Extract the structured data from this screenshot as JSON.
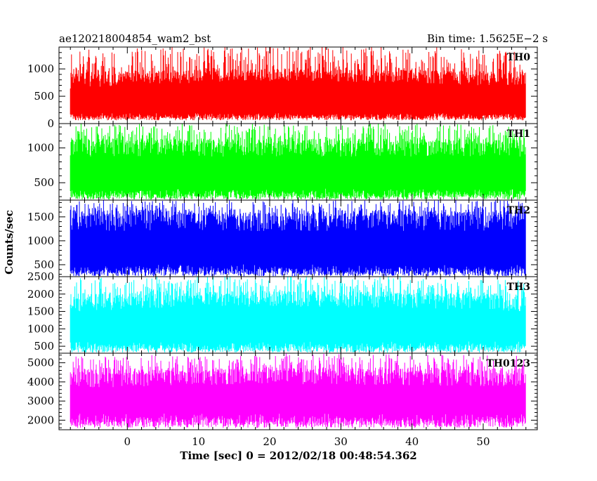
{
  "header": {
    "title": "ae120218004854_wam2_bst",
    "bin_time": "Bin time: 1.5625E−2 s"
  },
  "chart_data": {
    "type": "line",
    "xlabel": "Time [sec] 0 = 2012/02/18 00:48:54.362",
    "ylabel": "Counts/sec",
    "xlim": [
      -9.6,
      57.6
    ],
    "x_data_range": [
      -8.0,
      56.0
    ],
    "xticks": [
      0,
      10,
      20,
      30,
      40,
      50
    ],
    "series": [
      {
        "name": "TH0",
        "color": "#ff0000",
        "ylim": [
          0,
          1400
        ],
        "yticks": [
          0,
          500,
          1000
        ],
        "baseline": 620,
        "lo_range": [
          60,
          200
        ],
        "hi_range": [
          900,
          1400
        ],
        "trend": [
          [
            -8,
            560
          ],
          [
            0,
            600
          ],
          [
            10,
            630
          ],
          [
            20,
            650
          ],
          [
            30,
            640
          ],
          [
            40,
            620
          ],
          [
            50,
            600
          ],
          [
            56,
            590
          ]
        ]
      },
      {
        "name": "TH1",
        "color": "#00ff00",
        "ylim": [
          250,
          1350
        ],
        "yticks": [
          500,
          1000
        ],
        "baseline": 760,
        "lo_range": [
          260,
          420
        ],
        "hi_range": [
          1050,
          1350
        ],
        "trend": [
          [
            -8,
            760
          ],
          [
            56,
            760
          ]
        ]
      },
      {
        "name": "TH2",
        "color": "#0000ff",
        "ylim": [
          250,
          1850
        ],
        "yticks": [
          500,
          1000,
          1500
        ],
        "baseline": 1000,
        "lo_range": [
          260,
          520
        ],
        "hi_range": [
          1500,
          1850
        ],
        "trend": [
          [
            -8,
            1000
          ],
          [
            56,
            1000
          ]
        ]
      },
      {
        "name": "TH3",
        "color": "#00ffff",
        "ylim": [
          300,
          2500
        ],
        "yticks": [
          500,
          1000,
          1500,
          2000,
          2500
        ],
        "baseline": 1350,
        "lo_range": [
          320,
          650
        ],
        "hi_range": [
          1900,
          2500
        ],
        "trend": [
          [
            -8,
            1300
          ],
          [
            10,
            1400
          ],
          [
            30,
            1380
          ],
          [
            56,
            1300
          ]
        ]
      },
      {
        "name": "TH0123",
        "color": "#ff00ff",
        "ylim": [
          1500,
          5500
        ],
        "yticks": [
          2000,
          3000,
          4000,
          5000
        ],
        "baseline": 3300,
        "lo_range": [
          1600,
          2400
        ],
        "hi_range": [
          4400,
          5400
        ],
        "trend": [
          [
            -8,
            3250
          ],
          [
            20,
            3400
          ],
          [
            40,
            3350
          ],
          [
            56,
            3300
          ]
        ]
      }
    ]
  }
}
